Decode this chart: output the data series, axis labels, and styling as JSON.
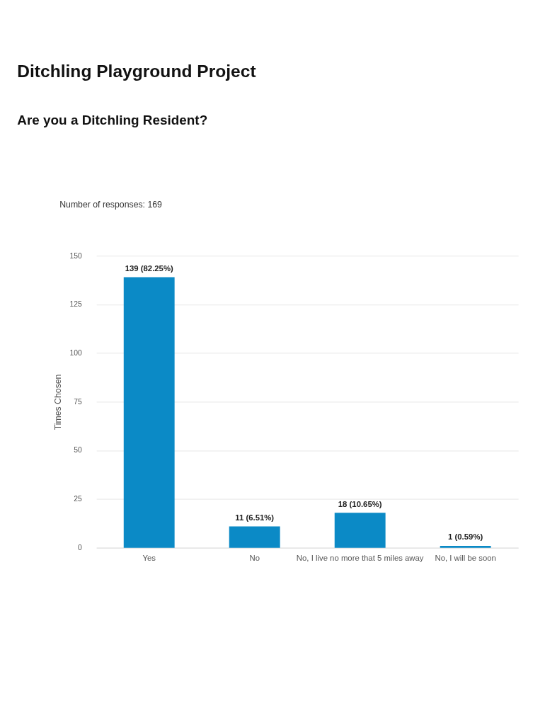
{
  "chart_data": {
    "type": "bar",
    "title": "Ditchling Playground Project",
    "subtitle": "Are you a Ditchling Resident?",
    "annotations": [
      "Number of responses: 169"
    ],
    "ylabel": "Times Chosen",
    "categories": [
      "Yes",
      "No",
      "No, I live no more that 5 miles away",
      "No, I will be soon"
    ],
    "values": [
      139,
      11,
      18,
      1
    ],
    "value_labels": [
      "139 (82.25%)",
      "11 (6.51%)",
      "18 (10.65%)",
      "1 (0.59%)"
    ],
    "color": "#0b8ac6",
    "ylim": [
      0,
      150
    ],
    "yticks": [
      0,
      25,
      50,
      75,
      100,
      125,
      150
    ],
    "grid": "y"
  }
}
